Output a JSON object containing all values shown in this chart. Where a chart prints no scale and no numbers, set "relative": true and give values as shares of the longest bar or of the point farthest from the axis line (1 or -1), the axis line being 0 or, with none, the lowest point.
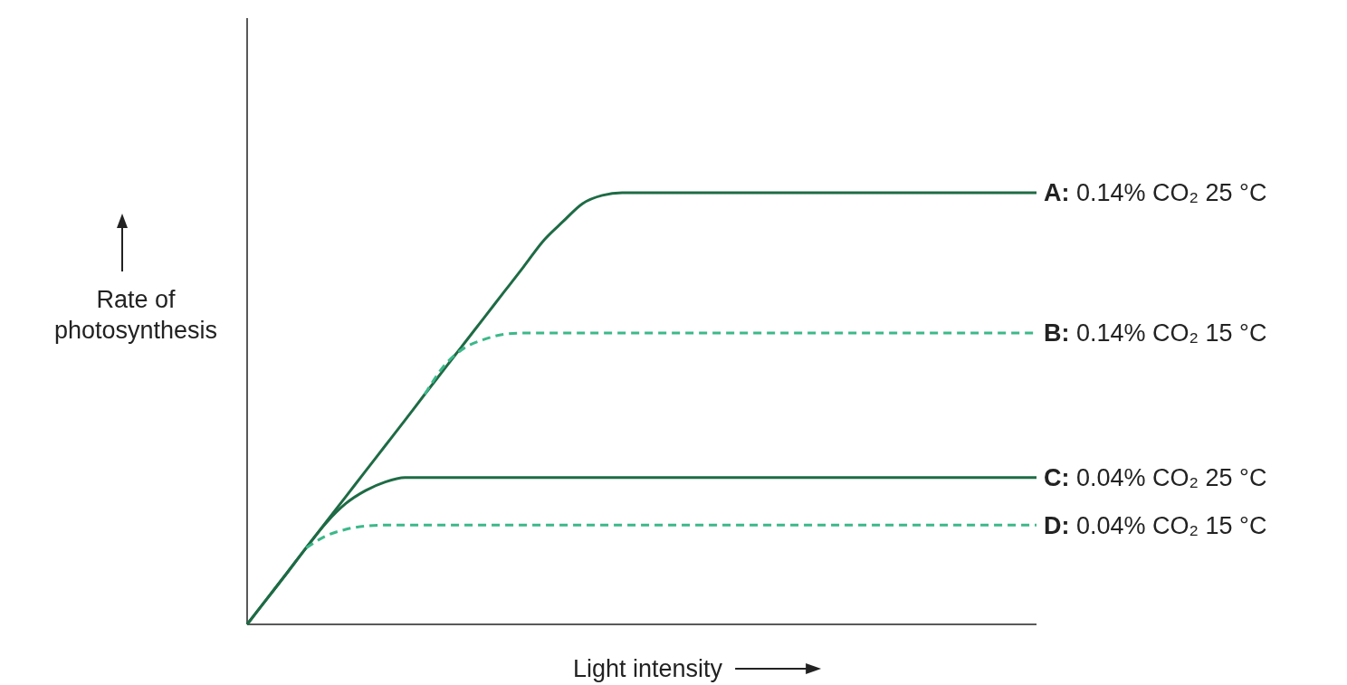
{
  "chart_data": {
    "type": "line",
    "relative": true,
    "xlabel": "Light intensity",
    "ylabel": "Rate of photosynthesis",
    "legend": false,
    "marker": "none",
    "categories": [
      null,
      null,
      null,
      null,
      null,
      null,
      null,
      null,
      null,
      null,
      null,
      null,
      null,
      null,
      null,
      null,
      null,
      null,
      null,
      null,
      null,
      null,
      null,
      null,
      null,
      null,
      null,
      null,
      null,
      null,
      null,
      null,
      null,
      null,
      null,
      null,
      null,
      null,
      null,
      null,
      null
    ],
    "series": [
      {
        "name": "A: 0.14% CO₂ 25 °C",
        "color": "#1e6b45",
        "line_style": "solid",
        "values": [
          0,
          0.059,
          0.118,
          0.178,
          0.237,
          0.296,
          0.355,
          0.414,
          0.473,
          0.533,
          0.592,
          0.651,
          0.71,
          0.769,
          0.828,
          0.888,
          0.933,
          0.975,
          0.994,
          1,
          1,
          1,
          1,
          1,
          1,
          1,
          1,
          1,
          1,
          1,
          1,
          1,
          1,
          1,
          1,
          1,
          1,
          1,
          1,
          1,
          1
        ]
      },
      {
        "name": "B: 0.14% CO₂ 15 °C",
        "color": "#3cb88a",
        "line_style": "dashed",
        "values": [
          null,
          null,
          null,
          null,
          null,
          null,
          null,
          null,
          null,
          0.533,
          0.6,
          0.64,
          0.66,
          0.672,
          0.675,
          0.675,
          0.675,
          0.675,
          0.675,
          0.675,
          0.675,
          0.675,
          0.675,
          0.675,
          0.675,
          0.675,
          0.675,
          0.675,
          0.675,
          0.675,
          0.675,
          0.675,
          0.675,
          0.675,
          0.675,
          0.675,
          0.675,
          0.675,
          0.675,
          0.675,
          0.675
        ]
      },
      {
        "name": "C: 0.04% CO₂ 25 °C",
        "color": "#1e6b45",
        "line_style": "solid",
        "values": [
          0,
          0.059,
          0.118,
          0.178,
          0.235,
          0.28,
          0.31,
          0.33,
          0.34,
          0.34,
          0.34,
          0.34,
          0.34,
          0.34,
          0.34,
          0.34,
          0.34,
          0.34,
          0.34,
          0.34,
          0.34,
          0.34,
          0.34,
          0.34,
          0.34,
          0.34,
          0.34,
          0.34,
          0.34,
          0.34,
          0.34,
          0.34,
          0.34,
          0.34,
          0.34,
          0.34,
          0.34,
          0.34,
          0.34,
          0.34,
          0.34
        ]
      },
      {
        "name": "D: 0.04% CO₂ 15 °C",
        "color": "#3cb88a",
        "line_style": "dashed",
        "values": [
          null,
          null,
          null,
          0.177,
          0.205,
          0.22,
          0.228,
          0.23,
          0.23,
          0.23,
          0.23,
          0.23,
          0.23,
          0.23,
          0.23,
          0.23,
          0.23,
          0.23,
          0.23,
          0.23,
          0.23,
          0.23,
          0.23,
          0.23,
          0.23,
          0.23,
          0.23,
          0.23,
          0.23,
          0.23,
          0.23,
          0.23,
          0.23,
          0.23,
          0.23,
          0.23,
          0.23,
          0.23,
          0.23,
          0.23,
          0.23
        ]
      }
    ]
  }
}
